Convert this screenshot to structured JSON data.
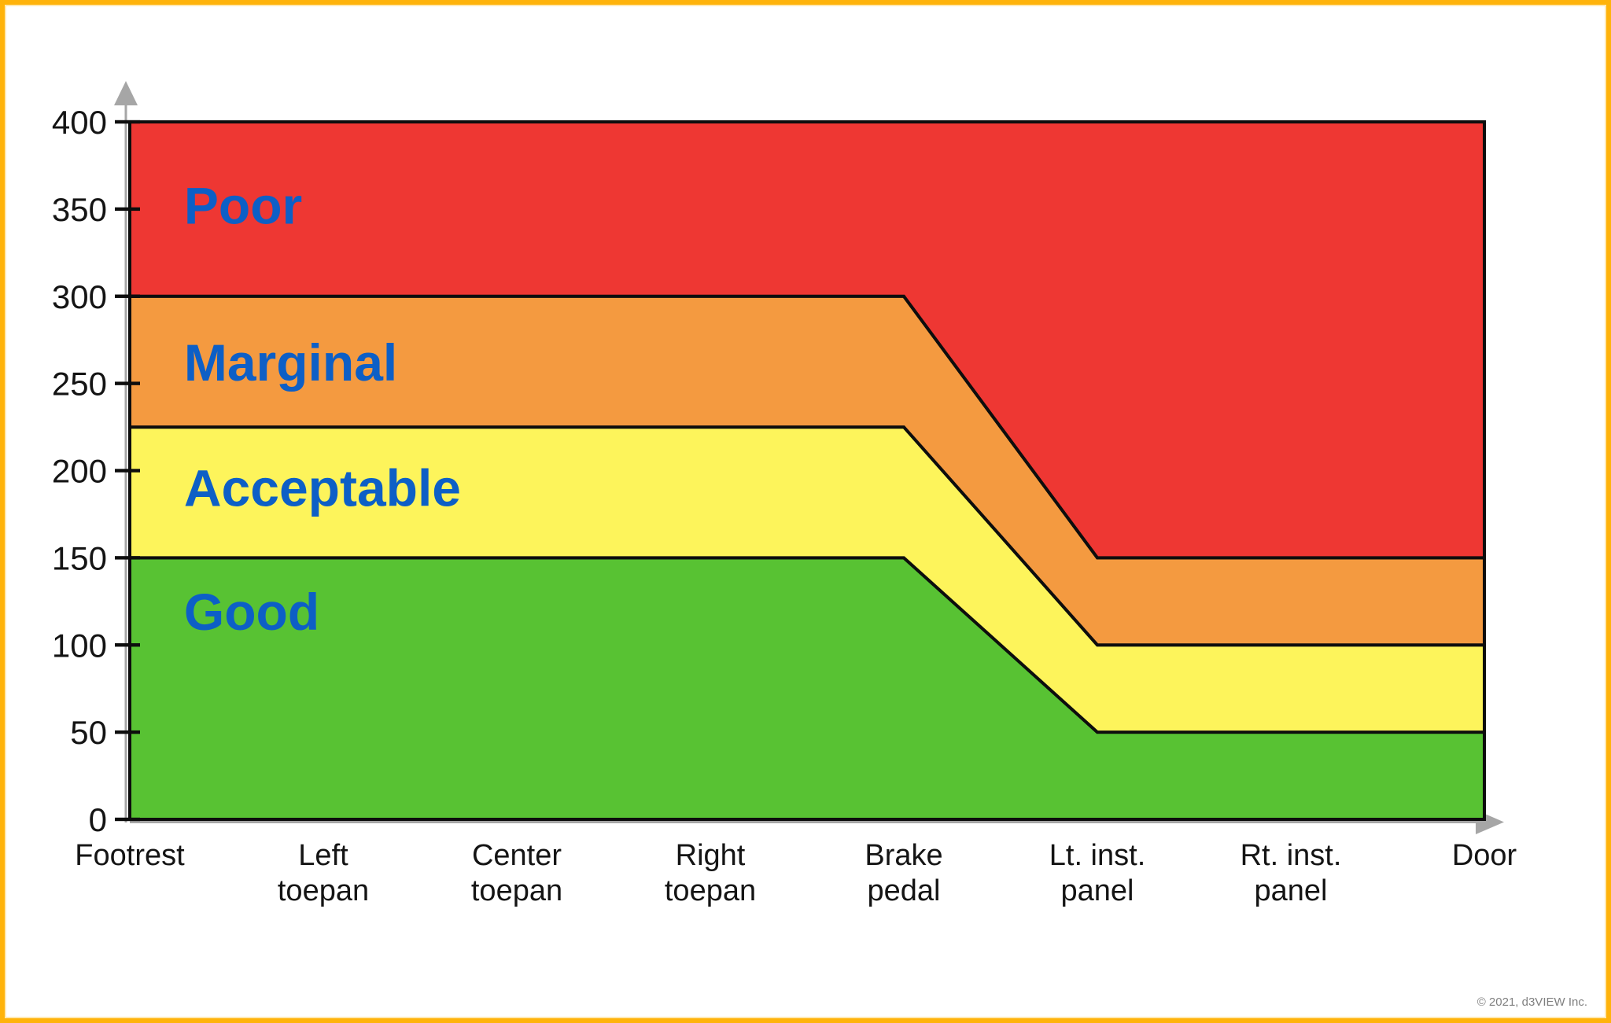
{
  "page": {
    "copyright": "© 2021, d3VIEW Inc."
  },
  "colors": {
    "frame": "#FFB30A",
    "frame_inner": "#FFE9B3",
    "axis_gray": "#A6A6A6",
    "line_black": "#0D0D0D",
    "label_blue": "#0D5FC6",
    "tick_text": "#141414",
    "copyright_gray": "#7F7F7F",
    "background": "#FFFFFF"
  },
  "chart_data": {
    "type": "area",
    "title": "",
    "xlabel": "",
    "ylabel": "",
    "grid": false,
    "legend_position": "labels-inside-bands",
    "ylim": [
      0,
      400
    ],
    "yticks": [
      0,
      50,
      100,
      150,
      200,
      250,
      300,
      350,
      400
    ],
    "categories": [
      "Footrest",
      "Left toepan",
      "Center toepan",
      "Right toepan",
      "Brake pedal",
      "Lt. inst. panel",
      "Rt. inst. panel",
      "Door"
    ],
    "category_lines": [
      [
        "Footrest"
      ],
      [
        "Left",
        "toepan"
      ],
      [
        "Center",
        "toepan"
      ],
      [
        "Right",
        "toepan"
      ],
      [
        "Brake",
        "pedal"
      ],
      [
        "Lt. inst.",
        "panel"
      ],
      [
        "Rt. inst.",
        "panel"
      ],
      [
        "Door"
      ]
    ],
    "bands": [
      {
        "name": "Good",
        "color": "#58C233",
        "upper": [
          150,
          150,
          150,
          150,
          150,
          50,
          50,
          50
        ],
        "label_y": 119
      },
      {
        "name": "Acceptable",
        "color": "#FDF45B",
        "upper": [
          225,
          225,
          225,
          225,
          225,
          100,
          100,
          100
        ],
        "label_y": 190
      },
      {
        "name": "Marginal",
        "color": "#F49A40",
        "upper": [
          300,
          300,
          300,
          300,
          300,
          150,
          150,
          150
        ],
        "label_y": 262
      },
      {
        "name": "Poor",
        "color": "#EE3733",
        "upper": [
          400,
          400,
          400,
          400,
          400,
          400,
          400,
          400
        ],
        "label_y": 352
      }
    ],
    "band_label_x_frac": 0.04
  }
}
